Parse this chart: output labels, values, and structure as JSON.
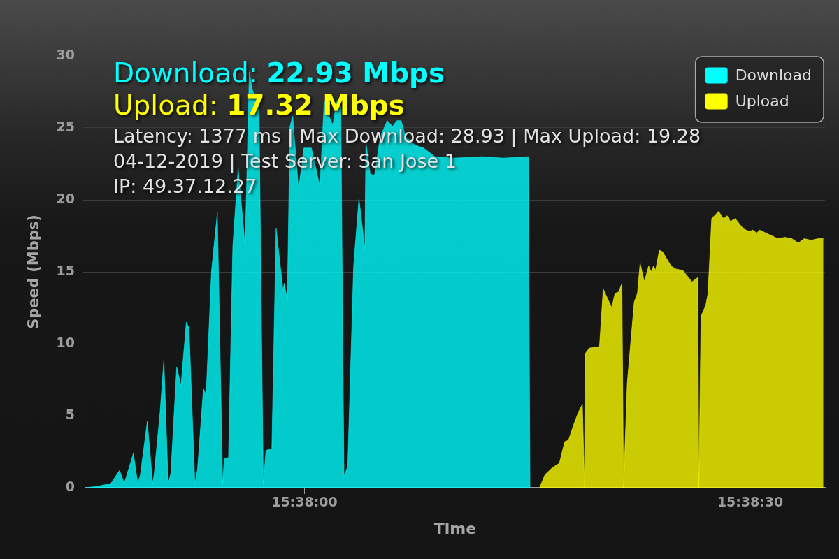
{
  "chart_data": {
    "type": "area",
    "xlabel": "Time",
    "ylabel": "Speed (Mbps)",
    "annotations": [
      "Download: 22.93 Mbps",
      "Upload: 17.32 Mbps",
      "Latency: 1377 ms | Max Download: 28.93 | Max Upload: 19.28",
      "04-12-2019 | Test Server: San Jose 1",
      "IP: 49.37.12.27"
    ],
    "xlim": [
      15.62923,
      15.64307
    ],
    "xticks": [
      {
        "value": 15.63333,
        "label": "15:38:00"
      },
      {
        "value": 15.64167,
        "label": "15:38:30"
      }
    ],
    "ylim": [
      0,
      30
    ],
    "yticks": [
      0,
      5,
      10,
      15,
      20,
      25,
      30
    ],
    "grid": "y",
    "legend": "top right",
    "series": [
      {
        "name": "Download",
        "color": "#00ffff",
        "x": [
          15.62924,
          15.62946,
          15.62971,
          15.62987,
          15.62996,
          15.63,
          15.63013,
          15.63021,
          15.63026,
          15.63039,
          15.63049,
          15.63052,
          15.63063,
          15.6307,
          15.63078,
          15.63083,
          15.63094,
          15.63102,
          15.63112,
          15.63117,
          15.63128,
          15.63133,
          15.63144,
          15.63149,
          15.63159,
          15.6317,
          15.6318,
          15.63183,
          15.63191,
          15.63199,
          15.63209,
          15.63222,
          15.6323,
          15.63235,
          15.63248,
          15.63256,
          15.63261,
          15.63272,
          15.6328,
          15.63293,
          15.63295,
          15.63301,
          15.63306,
          15.63311,
          15.63322,
          15.63332,
          15.63346,
          15.63362,
          15.6337,
          15.63378,
          15.63386,
          15.63394,
          15.63401,
          15.63407,
          15.63414,
          15.63425,
          15.63435,
          15.63446,
          15.63448,
          15.63456,
          15.63464,
          15.63475,
          15.63488,
          15.63498,
          15.63506,
          15.63514,
          15.63522,
          15.6354,
          15.63556,
          15.63577,
          15.63613,
          15.63666,
          15.63705,
          15.63752,
          15.63755
        ],
        "values": [
          0,
          0.1,
          0.3,
          1.2,
          0.3,
          0.8,
          2.4,
          0.3,
          0.9,
          4.6,
          0.3,
          1.0,
          5.3,
          8.9,
          0.3,
          1.0,
          8.4,
          7.1,
          11.5,
          11.1,
          0.3,
          1.3,
          6.9,
          6.4,
          15.0,
          19.1,
          0.3,
          2.0,
          2.1,
          16.8,
          22.2,
          16.8,
          28.9,
          27.7,
          26.5,
          0.3,
          2.6,
          2.7,
          18.0,
          13.7,
          14.2,
          13.1,
          25.1,
          25.8,
          20.7,
          23.6,
          23.6,
          20.9,
          26.9,
          25.9,
          25.2,
          26.9,
          26.5,
          0.8,
          1.5,
          15.4,
          20.1,
          16.6,
          24.0,
          21.8,
          21.7,
          24.4,
          25.5,
          25.1,
          25.5,
          25.5,
          24.4,
          23.8,
          23.6,
          23.0,
          22.9,
          23.0,
          22.9,
          23.0,
          0
        ]
      },
      {
        "name": "Upload",
        "color": "#ffff00",
        "x": [
          15.63773,
          15.63783,
          15.63797,
          15.6381,
          15.6382,
          15.63827,
          15.63836,
          15.63845,
          15.63853,
          15.63857,
          15.63858,
          15.63866,
          15.63885,
          15.63892,
          15.63908,
          15.63914,
          15.63921,
          15.63927,
          15.6393,
          15.63937,
          15.6395,
          15.63956,
          15.63961,
          15.63969,
          15.63977,
          15.63982,
          15.63986,
          15.6399,
          15.63997,
          15.64003,
          15.64019,
          15.64028,
          15.64041,
          15.64058,
          15.64069,
          15.64071,
          15.64075,
          15.64084,
          15.64088,
          15.64095,
          15.64108,
          15.64117,
          15.64124,
          15.6413,
          15.64139,
          15.64154,
          15.64165,
          15.64172,
          15.64179,
          15.64185,
          15.64202,
          15.64219,
          15.64232,
          15.64245,
          15.64257,
          15.64268,
          15.64281,
          15.64294,
          15.64304
        ],
        "values": [
          0,
          0.9,
          1.4,
          1.7,
          3.2,
          3.3,
          4.3,
          5.2,
          5.8,
          0,
          9.3,
          9.7,
          9.8,
          13.8,
          12.5,
          13.5,
          13.6,
          14.2,
          0,
          7.3,
          12.9,
          13.5,
          15.6,
          14.3,
          15.4,
          15.0,
          15.4,
          15.1,
          16.5,
          16.4,
          15.4,
          15.2,
          15.1,
          14.3,
          14.6,
          0,
          11.9,
          12.7,
          13.5,
          18.7,
          19.2,
          18.7,
          18.9,
          18.5,
          18.7,
          18.0,
          17.8,
          17.9,
          17.7,
          17.9,
          17.6,
          17.3,
          17.4,
          17.3,
          17.0,
          17.3,
          17.2,
          17.3,
          17.3
        ]
      }
    ]
  }
}
